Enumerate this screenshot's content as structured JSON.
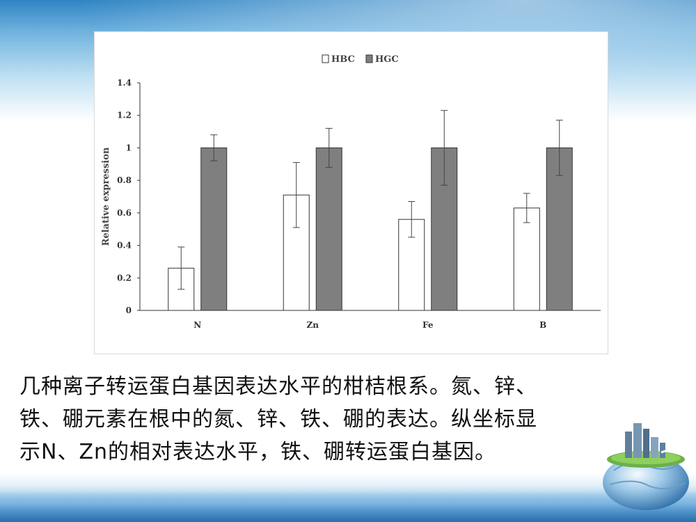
{
  "chart_data": {
    "type": "bar",
    "categories": [
      "N",
      "Zn",
      "Fe",
      "B"
    ],
    "series": [
      {
        "name": "HBC",
        "values": [
          0.26,
          0.71,
          0.56,
          0.63
        ],
        "errors": [
          0.13,
          0.2,
          0.11,
          0.09
        ],
        "color": "#ffffff"
      },
      {
        "name": "HGC",
        "values": [
          1.0,
          1.0,
          1.0,
          1.0
        ],
        "errors": [
          0.08,
          0.12,
          0.23,
          0.17
        ],
        "color": "#7f7f7f"
      }
    ],
    "ylabel": "Relative expression",
    "xlabel": "",
    "ylim": [
      0,
      1.4
    ],
    "yticks": [
      "0",
      "0.2",
      "0.4",
      "0.6",
      "0.8",
      "1",
      "1.2",
      "1.4"
    ],
    "legend_position": "top-center",
    "grid": false
  },
  "caption": {
    "lines": [
      "几种离子转运蛋白基因表达水平的柑桔根系。氮、锌、",
      "铁、硼元素在根中的氮、锌、铁、硼的表达。纵坐标显",
      "示N、Zn的相对表达水平，铁、硼转运蛋白基因。"
    ]
  },
  "decoration": {
    "icon": "globe-city-icon"
  }
}
